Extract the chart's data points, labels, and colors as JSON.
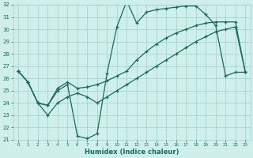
{
  "xlabel": "Humidex (Indice chaleur)",
  "bg_color": "#cff0ea",
  "grid_color": "#9fcfc8",
  "line_color": "#1a6b5a",
  "xlim": [
    -0.5,
    23.5
  ],
  "ylim": [
    21,
    32
  ],
  "xticks": [
    0,
    1,
    2,
    3,
    4,
    5,
    6,
    7,
    8,
    9,
    10,
    11,
    12,
    13,
    14,
    15,
    16,
    17,
    18,
    19,
    20,
    21,
    22,
    23
  ],
  "yticks": [
    21,
    22,
    23,
    24,
    25,
    26,
    27,
    28,
    29,
    30,
    31,
    32
  ],
  "line1_x": [
    0,
    1,
    2,
    3,
    4,
    5,
    6,
    7,
    8,
    9,
    10,
    11,
    12,
    13,
    14,
    15,
    16,
    17,
    18,
    19,
    20,
    21,
    22,
    23
  ],
  "line1_y": [
    26.6,
    25.7,
    24.0,
    23.8,
    25.0,
    25.5,
    21.3,
    21.1,
    21.5,
    26.4,
    30.2,
    32.3,
    30.5,
    31.4,
    31.6,
    31.7,
    31.8,
    31.9,
    31.9,
    31.2,
    30.3,
    26.2,
    26.5,
    26.5
  ],
  "line2_x": [
    0,
    1,
    2,
    3,
    4,
    5,
    6,
    7,
    8,
    9,
    10,
    11,
    12,
    13,
    14,
    15,
    16,
    17,
    18,
    19,
    20,
    21,
    22,
    23
  ],
  "line2_y": [
    26.6,
    25.7,
    24.0,
    23.8,
    25.2,
    25.7,
    25.2,
    25.3,
    25.5,
    25.8,
    26.2,
    26.6,
    27.5,
    28.2,
    28.8,
    29.3,
    29.7,
    30.0,
    30.3,
    30.5,
    30.6,
    30.6,
    30.6,
    26.5
  ],
  "line3_x": [
    0,
    1,
    2,
    3,
    4,
    5,
    6,
    7,
    8,
    9,
    10,
    11,
    12,
    13,
    14,
    15,
    16,
    17,
    18,
    19,
    20,
    21,
    22,
    23
  ],
  "line3_y": [
    26.6,
    25.7,
    24.0,
    23.0,
    24.0,
    24.5,
    24.8,
    24.5,
    24.0,
    24.5,
    25.0,
    25.5,
    26.0,
    26.5,
    27.0,
    27.5,
    28.0,
    28.5,
    29.0,
    29.4,
    29.8,
    30.0,
    30.2,
    26.5
  ]
}
